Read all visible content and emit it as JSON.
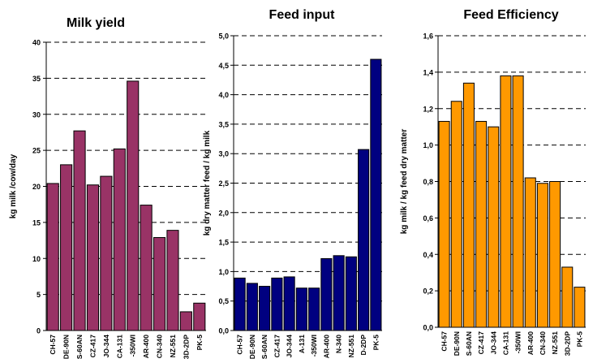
{
  "chart_data": [
    {
      "type": "bar",
      "title": "Milk yield",
      "xlabel": "",
      "ylabel": "kg milk /cow/day",
      "ylim": [
        0,
        40
      ],
      "yticks": [
        "0",
        "5",
        "10",
        "15",
        "20",
        "25",
        "30",
        "35",
        "40"
      ],
      "grid": true,
      "color": "#993366",
      "categories": [
        "CH-57",
        "DE-90N",
        "S-60AN",
        "CZ-417",
        "JO-344",
        "CA-131",
        "-350WI",
        "AR-400",
        "CN-340",
        "NZ-551",
        "3D-2DP",
        "PK-5"
      ],
      "values": [
        20.4,
        23.0,
        27.7,
        20.2,
        21.4,
        25.2,
        34.6,
        17.4,
        12.9,
        13.9,
        2.6,
        3.8
      ]
    },
    {
      "type": "bar",
      "title": "Feed input",
      "xlabel": "",
      "ylabel": "kg dry matter feed / kg milk",
      "ylim": [
        0,
        5
      ],
      "yticks": [
        "0,0",
        "0,5",
        "1,0",
        "1,5",
        "2,0",
        "2,5",
        "3,0",
        "3,5",
        "4,0",
        "4,5",
        "5,0"
      ],
      "grid": true,
      "color": "#000080",
      "categories": [
        "CH-57",
        "DE-90N",
        "S-60AN",
        "CZ-417",
        "JO-344",
        "A-131",
        "-350WI",
        "AR-400",
        "N-340",
        "NZ-551",
        "D-2DP",
        "PK-5"
      ],
      "values": [
        0.89,
        0.8,
        0.75,
        0.89,
        0.91,
        0.72,
        0.72,
        1.22,
        1.27,
        1.25,
        3.07,
        4.6
      ]
    },
    {
      "type": "bar",
      "title": "Feed Efficiency",
      "xlabel": "",
      "ylabel": "kg milk / kg feed dry matter",
      "ylim": [
        0,
        1.6
      ],
      "yticks": [
        "0,0",
        "0,2",
        "0,4",
        "0,6",
        "0,8",
        "1,0",
        "1,2",
        "1,4",
        "1,6"
      ],
      "grid": true,
      "color": "#FF9900",
      "categories": [
        "CH-57",
        "DE-90N",
        "S-60AN",
        "CZ-417",
        "JO-344",
        "CA-131",
        "-350WI",
        "AR-400",
        "CN-340",
        "NZ-551",
        "3D-2DP",
        "PK-5"
      ],
      "values": [
        1.13,
        1.24,
        1.34,
        1.13,
        1.1,
        1.38,
        1.38,
        0.82,
        0.79,
        0.8,
        0.33,
        0.22
      ]
    }
  ]
}
